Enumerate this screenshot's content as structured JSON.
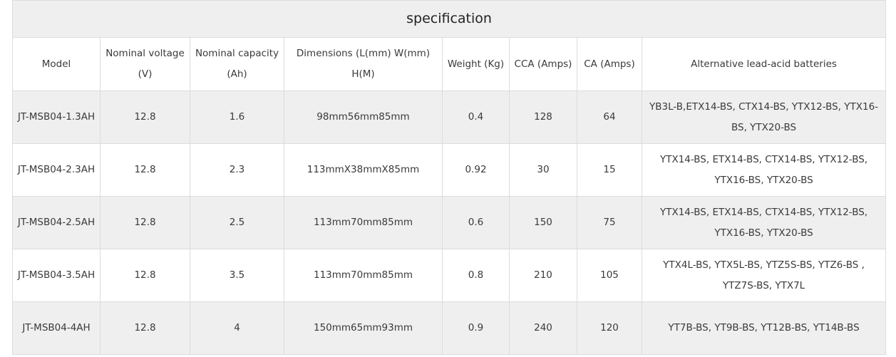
{
  "title": "specification",
  "columns": [
    "Model",
    "Nominal voltage (V)",
    "Nominal capacity (Ah)",
    "Dimensions (L(mm) W(mm) H(M)",
    "Weight (Kg)",
    "CCA (Amps)",
    "CA (Amps)",
    "Alternative lead-acid batteries"
  ],
  "rows": [
    [
      "JT-MSB04-1.3AH",
      "12.8",
      "1.6",
      "98mm56mm85mm",
      "0.4",
      "128",
      "64",
      "YB3L-B,ETX14-BS, CTX14-BS, YTX12-BS, YTX16-BS, YTX20-BS"
    ],
    [
      "JT-MSB04-2.3AH",
      "12.8",
      "2.3",
      "113mmX38mmX85mm",
      "0.92",
      "30",
      "15",
      "YTX14-BS, ETX14-BS, CTX14-BS, YTX12-BS, YTX16-BS, YTX20-BS"
    ],
    [
      "JT-MSB04-2.5AH",
      "12.8",
      "2.5",
      "113mm70mm85mm",
      "0.6",
      "150",
      "75",
      "YTX14-BS, ETX14-BS, CTX14-BS, YTX12-BS, YTX16-BS, YTX20-BS"
    ],
    [
      "JT-MSB04-3.5AH",
      "12.8",
      "3.5",
      "113mm70mm85mm",
      "0.8",
      "210",
      "105",
      "YTX4L-BS, YTX5L-BS, YTZ5S-BS, YTZ6-BS , YTZ7S-BS, YTX7L"
    ],
    [
      "JT-MSB04-4AH",
      "12.8",
      "4",
      "150mm65mm93mm",
      "0.9",
      "240",
      "120",
      "YT7B-BS, YT9B-BS, YT12B-BS, YT14B-BS"
    ]
  ]
}
